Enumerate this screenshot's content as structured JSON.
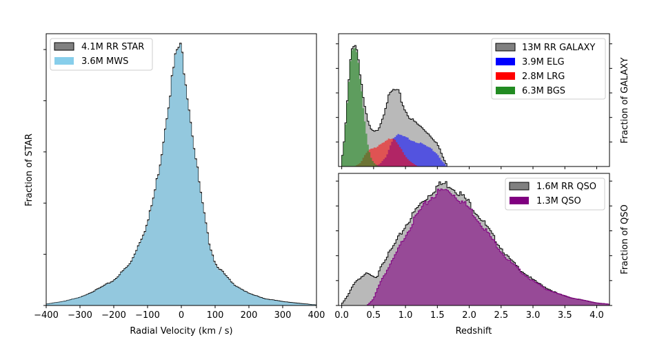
{
  "chart_data": [
    {
      "type": "histogram",
      "panel": "left",
      "xlabel": "Radial Velocity (km / s)",
      "ylabel": "Fraction of STAR",
      "xlim": [
        -400,
        400
      ],
      "ylim": [
        0,
        1.03
      ],
      "xticks": [
        -400,
        -300,
        -200,
        -100,
        0,
        100,
        200,
        300,
        400
      ],
      "xtick_labels": [
        "−400",
        "−300",
        "−200",
        "−100",
        "0",
        "100",
        "200",
        "300",
        "400"
      ],
      "legend_position": "top-left",
      "series": [
        {
          "name": "4.1M RR STAR",
          "color": "#808080",
          "edgecolor": "#000000"
        },
        {
          "name": "3.6M MWS",
          "color": "#87ceeb"
        }
      ],
      "profile": {
        "peak_x": -5,
        "peak_y": 1.0
      },
      "rr_star": {
        "x": [
          -400,
          -350,
          -300,
          -250,
          -200,
          -150,
          -100,
          -80,
          -60,
          -40,
          -20,
          -10,
          0,
          10,
          20,
          40,
          60,
          80,
          100,
          150,
          200,
          250,
          300,
          350,
          400
        ],
        "y": [
          0.005,
          0.015,
          0.03,
          0.06,
          0.095,
          0.16,
          0.31,
          0.42,
          0.56,
          0.75,
          0.92,
          0.98,
          0.97,
          0.88,
          0.78,
          0.58,
          0.4,
          0.25,
          0.16,
          0.085,
          0.045,
          0.025,
          0.015,
          0.008,
          0.002
        ]
      },
      "mws": {
        "x": [
          -400,
          -350,
          -300,
          -250,
          -200,
          -150,
          -100,
          -80,
          -60,
          -40,
          -20,
          -10,
          0,
          10,
          20,
          40,
          60,
          80,
          100,
          150,
          200,
          250,
          300,
          350,
          400
        ],
        "y": [
          0.005,
          0.015,
          0.03,
          0.058,
          0.093,
          0.158,
          0.305,
          0.415,
          0.555,
          0.745,
          0.915,
          0.975,
          0.965,
          0.875,
          0.775,
          0.575,
          0.395,
          0.245,
          0.155,
          0.083,
          0.044,
          0.024,
          0.014,
          0.007,
          0.002
        ]
      }
    },
    {
      "type": "histogram",
      "panel": "top-right",
      "xlabel": "",
      "ylabel": "Fraction of GALAXY",
      "xlim": [
        -0.05,
        4.2
      ],
      "ylim": [
        0,
        1.05
      ],
      "legend_position": "top-right",
      "series": [
        {
          "name": "13M RR GALAXY",
          "color": "#808080",
          "edgecolor": "#000000",
          "x": [
            0.0,
            0.05,
            0.1,
            0.15,
            0.2,
            0.25,
            0.3,
            0.35,
            0.4,
            0.45,
            0.5,
            0.55,
            0.6,
            0.65,
            0.7,
            0.75,
            0.8,
            0.85,
            0.9,
            0.95,
            1.0,
            1.05,
            1.1,
            1.2,
            1.3,
            1.4,
            1.5,
            1.55,
            1.6,
            1.65
          ],
          "y": [
            0.03,
            0.25,
            0.6,
            0.9,
            1.0,
            0.9,
            0.7,
            0.5,
            0.37,
            0.3,
            0.27,
            0.28,
            0.33,
            0.4,
            0.5,
            0.56,
            0.6,
            0.6,
            0.58,
            0.5,
            0.44,
            0.4,
            0.37,
            0.33,
            0.29,
            0.24,
            0.18,
            0.12,
            0.06,
            0.01
          ]
        },
        {
          "name": "3.9M ELG",
          "color": "#0000ff",
          "x": [
            0.5,
            0.6,
            0.7,
            0.75,
            0.8,
            0.85,
            0.9,
            0.95,
            1.0,
            1.1,
            1.2,
            1.3,
            1.4,
            1.5,
            1.55,
            1.6,
            1.65
          ],
          "y": [
            0.0,
            0.02,
            0.08,
            0.15,
            0.22,
            0.24,
            0.25,
            0.24,
            0.23,
            0.21,
            0.19,
            0.17,
            0.14,
            0.1,
            0.06,
            0.03,
            0.0
          ]
        },
        {
          "name": "2.8M LRG",
          "color": "#ff0000",
          "x": [
            0.2,
            0.3,
            0.35,
            0.4,
            0.45,
            0.5,
            0.55,
            0.6,
            0.7,
            0.75,
            0.8,
            0.85,
            0.9,
            0.95,
            1.0,
            1.05,
            1.1,
            1.15,
            1.2
          ],
          "y": [
            0.0,
            0.03,
            0.08,
            0.12,
            0.14,
            0.15,
            0.15,
            0.17,
            0.2,
            0.22,
            0.23,
            0.21,
            0.17,
            0.12,
            0.08,
            0.05,
            0.03,
            0.015,
            0.0
          ]
        },
        {
          "name": "6.3M BGS",
          "color": "#228b22",
          "x": [
            0.0,
            0.05,
            0.1,
            0.15,
            0.2,
            0.25,
            0.3,
            0.35,
            0.4,
            0.45,
            0.5,
            0.55,
            0.6
          ],
          "y": [
            0.03,
            0.24,
            0.58,
            0.89,
            0.98,
            0.88,
            0.66,
            0.4,
            0.2,
            0.08,
            0.03,
            0.01,
            0.0
          ]
        }
      ]
    },
    {
      "type": "histogram",
      "panel": "bottom-right",
      "xlabel": "Redshift",
      "ylabel": "Fraction of QSO",
      "xlim": [
        -0.05,
        4.2
      ],
      "ylim": [
        0,
        1.03
      ],
      "xticks": [
        0.0,
        0.5,
        1.0,
        1.5,
        2.0,
        2.5,
        3.0,
        3.5,
        4.0
      ],
      "xtick_labels": [
        "0.0",
        "0.5",
        "1.0",
        "1.5",
        "2.0",
        "2.5",
        "3.0",
        "3.5",
        "4.0"
      ],
      "legend_position": "top-right",
      "series": [
        {
          "name": "1.6M RR QSO",
          "color": "#808080",
          "edgecolor": "#000000",
          "x": [
            0.0,
            0.1,
            0.2,
            0.3,
            0.4,
            0.5,
            0.55,
            0.6,
            0.8,
            1.0,
            1.2,
            1.4,
            1.5,
            1.6,
            1.7,
            1.8,
            2.0,
            2.2,
            2.4,
            2.6,
            2.8,
            3.0,
            3.2,
            3.4,
            3.6,
            3.8,
            4.0,
            4.2
          ],
          "y": [
            0.01,
            0.08,
            0.18,
            0.22,
            0.25,
            0.22,
            0.21,
            0.3,
            0.45,
            0.62,
            0.77,
            0.88,
            0.93,
            0.95,
            0.94,
            0.9,
            0.8,
            0.67,
            0.52,
            0.38,
            0.28,
            0.2,
            0.14,
            0.09,
            0.06,
            0.04,
            0.02,
            0.01
          ]
        },
        {
          "name": "1.3M QSO",
          "color": "#800080",
          "x": [
            0.4,
            0.5,
            0.6,
            0.8,
            1.0,
            1.2,
            1.4,
            1.5,
            1.6,
            1.7,
            1.8,
            2.0,
            2.2,
            2.4,
            2.6,
            2.8,
            3.0,
            3.2,
            3.4,
            3.6,
            3.8,
            4.0,
            4.2
          ],
          "y": [
            0.0,
            0.05,
            0.18,
            0.35,
            0.55,
            0.72,
            0.84,
            0.88,
            0.9,
            0.89,
            0.85,
            0.76,
            0.63,
            0.49,
            0.36,
            0.27,
            0.19,
            0.13,
            0.09,
            0.06,
            0.04,
            0.02,
            0.01
          ]
        }
      ]
    }
  ]
}
